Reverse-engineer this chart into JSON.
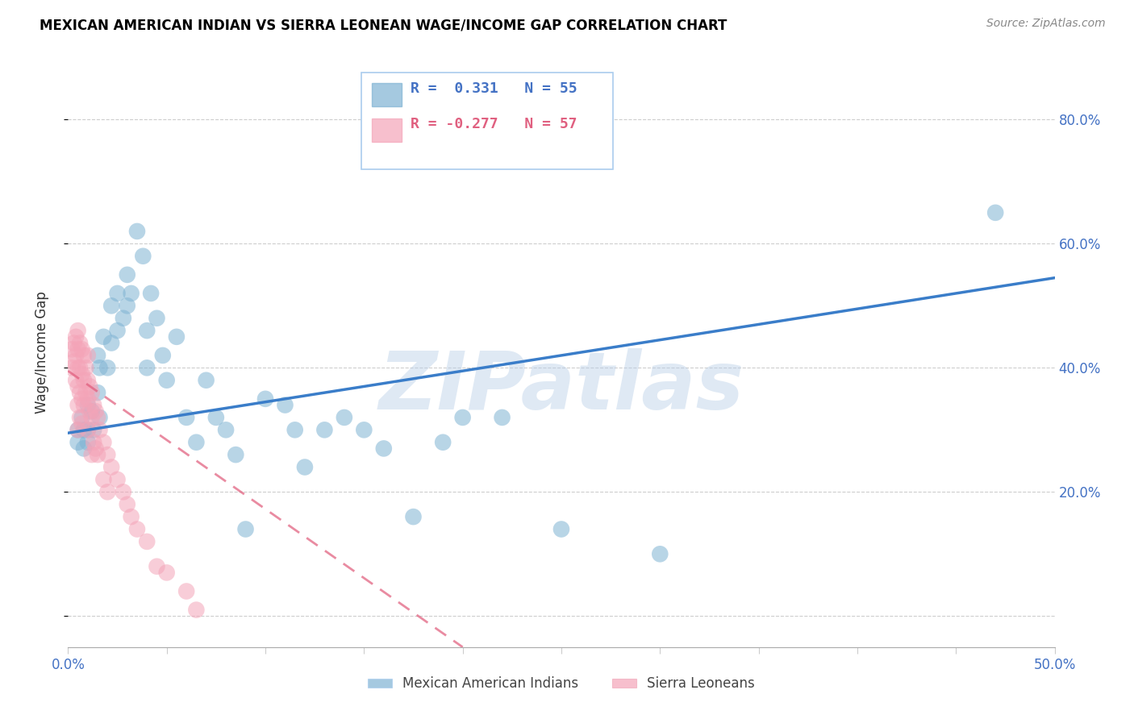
{
  "title": "MEXICAN AMERICAN INDIAN VS SIERRA LEONEAN WAGE/INCOME GAP CORRELATION CHART",
  "source": "Source: ZipAtlas.com",
  "ylabel": "Wage/Income Gap",
  "watermark": "ZIPatlas",
  "xlim": [
    0.0,
    0.5
  ],
  "ylim": [
    -0.05,
    0.9
  ],
  "xtick_positions": [
    0.0,
    0.5
  ],
  "xtick_labels": [
    "0.0%",
    "50.0%"
  ],
  "yticks": [
    0.0,
    0.2,
    0.4,
    0.6,
    0.8
  ],
  "ytick_labels": [
    "",
    "20.0%",
    "40.0%",
    "60.0%",
    "80.0%"
  ],
  "blue_color": "#7fb3d3",
  "pink_color": "#f4a4b8",
  "blue_line_color": "#3a7dc9",
  "pink_line_color": "#e05a7a",
  "legend_blue_R": "0.331",
  "legend_blue_N": "55",
  "legend_pink_R": "-0.277",
  "legend_pink_N": "57",
  "legend_blue_label": "Mexican American Indians",
  "legend_pink_label": "Sierra Leoneans",
  "blue_x": [
    0.005,
    0.005,
    0.007,
    0.008,
    0.008,
    0.01,
    0.01,
    0.01,
    0.012,
    0.013,
    0.015,
    0.015,
    0.016,
    0.016,
    0.018,
    0.02,
    0.022,
    0.022,
    0.025,
    0.025,
    0.028,
    0.03,
    0.03,
    0.032,
    0.035,
    0.038,
    0.04,
    0.04,
    0.042,
    0.045,
    0.048,
    0.05,
    0.055,
    0.06,
    0.065,
    0.07,
    0.075,
    0.08,
    0.085,
    0.09,
    0.1,
    0.11,
    0.115,
    0.12,
    0.13,
    0.14,
    0.15,
    0.16,
    0.175,
    0.19,
    0.2,
    0.22,
    0.25,
    0.3,
    0.47
  ],
  "blue_y": [
    0.3,
    0.28,
    0.32,
    0.3,
    0.27,
    0.34,
    0.3,
    0.28,
    0.33,
    0.3,
    0.42,
    0.36,
    0.4,
    0.32,
    0.45,
    0.4,
    0.5,
    0.44,
    0.52,
    0.46,
    0.48,
    0.55,
    0.5,
    0.52,
    0.62,
    0.58,
    0.46,
    0.4,
    0.52,
    0.48,
    0.42,
    0.38,
    0.45,
    0.32,
    0.28,
    0.38,
    0.32,
    0.3,
    0.26,
    0.14,
    0.35,
    0.34,
    0.3,
    0.24,
    0.3,
    0.32,
    0.3,
    0.27,
    0.16,
    0.28,
    0.32,
    0.32,
    0.14,
    0.1,
    0.65
  ],
  "pink_x": [
    0.002,
    0.002,
    0.003,
    0.003,
    0.004,
    0.004,
    0.004,
    0.005,
    0.005,
    0.005,
    0.005,
    0.005,
    0.005,
    0.006,
    0.006,
    0.006,
    0.006,
    0.007,
    0.007,
    0.007,
    0.007,
    0.008,
    0.008,
    0.008,
    0.009,
    0.009,
    0.01,
    0.01,
    0.01,
    0.01,
    0.011,
    0.011,
    0.012,
    0.012,
    0.012,
    0.013,
    0.013,
    0.014,
    0.014,
    0.015,
    0.015,
    0.016,
    0.018,
    0.018,
    0.02,
    0.02,
    0.022,
    0.025,
    0.028,
    0.03,
    0.032,
    0.035,
    0.04,
    0.045,
    0.05,
    0.06,
    0.065
  ],
  "pink_y": [
    0.43,
    0.4,
    0.44,
    0.41,
    0.45,
    0.42,
    0.38,
    0.46,
    0.43,
    0.4,
    0.37,
    0.34,
    0.3,
    0.44,
    0.4,
    0.36,
    0.32,
    0.43,
    0.39,
    0.35,
    0.31,
    0.42,
    0.38,
    0.34,
    0.4,
    0.36,
    0.42,
    0.38,
    0.35,
    0.3,
    0.37,
    0.33,
    0.36,
    0.32,
    0.26,
    0.34,
    0.28,
    0.33,
    0.27,
    0.32,
    0.26,
    0.3,
    0.28,
    0.22,
    0.26,
    0.2,
    0.24,
    0.22,
    0.2,
    0.18,
    0.16,
    0.14,
    0.12,
    0.08,
    0.07,
    0.04,
    0.01
  ],
  "blue_line_x0": 0.0,
  "blue_line_y0": 0.295,
  "blue_line_x1": 0.5,
  "blue_line_y1": 0.545,
  "pink_line_x0": 0.0,
  "pink_line_y0": 0.395,
  "pink_line_x1": 0.2,
  "pink_line_y1": -0.05
}
